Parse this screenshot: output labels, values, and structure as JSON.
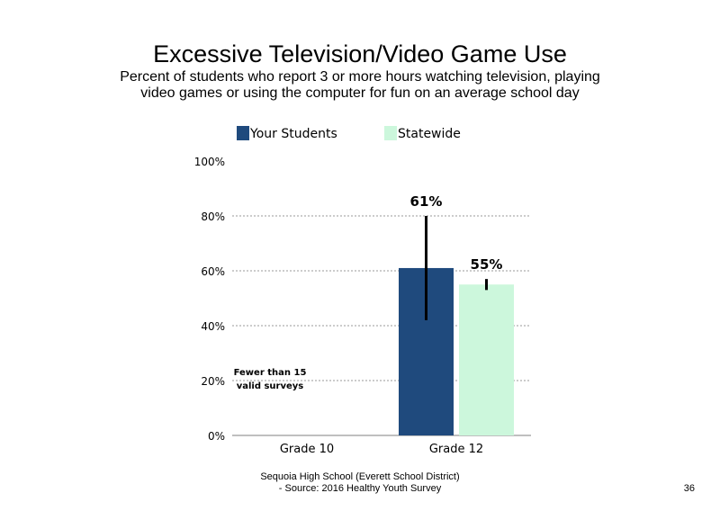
{
  "colors": {
    "your_students": "#1f4a7d",
    "statewide": "#ccf7dc",
    "error_bar": "#000000",
    "grid": "#9a9a9a",
    "axis": "#7f7f7f"
  },
  "chart_data": {
    "type": "bar",
    "title": "Excessive Television/Video Game Use",
    "subtitle": "Percent of students who report 3 or more hours watching television, playing video games or using the computer for fun on an average school day",
    "categories": [
      "Grade 10",
      "Grade 12"
    ],
    "series": [
      {
        "name": "Your Students",
        "values": [
          null,
          61
        ],
        "data_labels": [
          "",
          "61%"
        ],
        "ci_low": [
          null,
          42
        ],
        "ci_high": [
          null,
          80
        ]
      },
      {
        "name": "Statewide",
        "values": [
          null,
          55
        ],
        "data_labels": [
          "",
          "55%"
        ],
        "ci_low": [
          null,
          53
        ],
        "ci_high": [
          null,
          57
        ]
      }
    ],
    "ylim": [
      0,
      100
    ],
    "yticks": [
      0,
      20,
      40,
      60,
      80,
      100
    ],
    "ytick_labels": [
      "0%",
      "20%",
      "40%",
      "60%",
      "80%",
      "100%"
    ],
    "grid": true,
    "legend_position": "top",
    "annotations": [
      {
        "category": "Grade 10",
        "text_lines": [
          "Fewer than 15",
          "valid surveys"
        ]
      }
    ]
  },
  "footer": {
    "line1": "Sequoia High School (Everett School District)",
    "line2": "- Source: 2016 Healthy Youth Survey"
  },
  "page_number": "36"
}
